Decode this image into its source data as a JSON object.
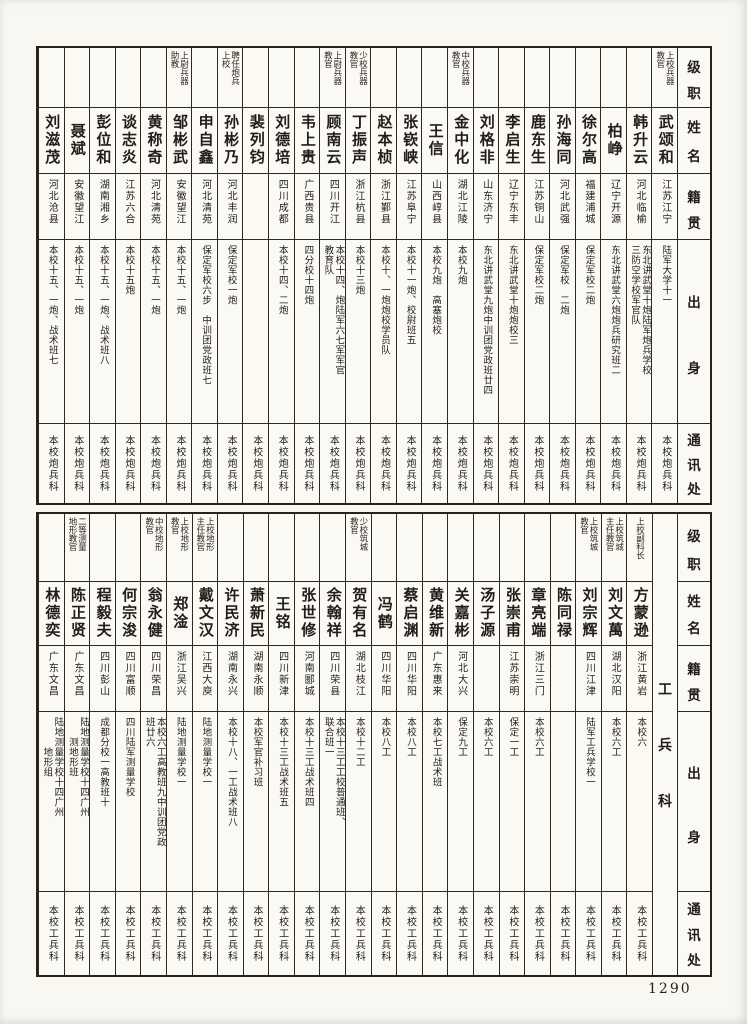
{
  "page": {
    "number": "1290"
  },
  "colors": {
    "paper": "#f8f7f2",
    "ink": "#211e19",
    "line": "#2e2a22"
  },
  "headers": {
    "rank": "级职",
    "name": "姓名",
    "origin": "籍贯",
    "background": "出身",
    "contact": "通讯处"
  },
  "artillery_section": {
    "people": [
      {
        "name": "武颂和",
        "rank": "上校兵器\n教官",
        "origin": "江苏江宁",
        "background": "陆军大学十一",
        "contact": "本校炮兵科"
      },
      {
        "name": "韩升云",
        "rank": "",
        "origin": "河北临榆",
        "background": "东北讲武堂十炮陆军炮兵学校\n三防空学校军官队",
        "contact": "本校炮兵科"
      },
      {
        "name": "柏峥",
        "rank": "",
        "origin": "辽宁开源",
        "background": "东北讲武堂六炮炮兵研究班二",
        "contact": "本校炮兵科"
      },
      {
        "name": "徐尔高",
        "rank": "",
        "origin": "福建浦城",
        "background": "保定军校二炮",
        "contact": "本校炮兵科"
      },
      {
        "name": "孙海同",
        "rank": "",
        "origin": "河北武强",
        "background": "保定军校　二炮",
        "contact": "本校炮兵科"
      },
      {
        "name": "鹿东生",
        "rank": "",
        "origin": "江苏铜山",
        "background": "保定军校二炮",
        "contact": "本校炮兵科"
      },
      {
        "name": "李启生",
        "rank": "",
        "origin": "辽宁东丰",
        "background": "东北讲武堂十炮炮校三",
        "contact": "本校炮兵科"
      },
      {
        "name": "刘格非",
        "rank": "",
        "origin": "山东济宁",
        "background": "东北讲武堂九炮中训团党政班廿四",
        "contact": "本校炮兵科"
      },
      {
        "name": "金中化",
        "rank": "中校兵器\n教官",
        "origin": "湖北江陵",
        "background": "本校九炮",
        "contact": "本校炮兵科"
      },
      {
        "name": "王信",
        "rank": "",
        "origin": "山西崞县",
        "background": "本校九炮　高塞炮校",
        "contact": "本校炮兵科"
      },
      {
        "name": "张嵚峡",
        "rank": "",
        "origin": "江苏阜宁",
        "background": "本校十一炮、校尉班五",
        "contact": "本校炮兵科"
      },
      {
        "name": "赵本桢",
        "rank": "",
        "origin": "浙江鄞县",
        "background": "本校十、一炮炮校学员队",
        "contact": "本校炮兵科"
      },
      {
        "name": "丁振声",
        "rank": "少校兵器\n教官",
        "origin": "浙江杭县",
        "background": "本校十三炮",
        "contact": "本校炮兵科"
      },
      {
        "name": "顾南云",
        "rank": "上尉兵器\n教官",
        "origin": "四川开江",
        "background": "本校十四、炮陆军六七军军官\n教育队",
        "contact": "本校炮兵科"
      },
      {
        "name": "韦上贵",
        "rank": "",
        "origin": "广西贵县",
        "background": "四分校十四炮",
        "contact": "本校炮兵科"
      },
      {
        "name": "刘德培",
        "rank": "",
        "origin": "四川成都",
        "background": "本校十四、二炮",
        "contact": "本校炮兵科"
      },
      {
        "name": "裴列钧",
        "rank": "",
        "origin": "",
        "background": "",
        "contact": "本校炮兵科"
      },
      {
        "name": "孙彬乃",
        "rank": "聘任炮兵\n上校",
        "origin": "河北丰润",
        "background": "保定军校一炮",
        "contact": "本校炮兵科"
      },
      {
        "name": "申自鑫",
        "rank": "",
        "origin": "河北清苑",
        "background": "保定军校六步　中训团党政班七",
        "contact": "本校炮兵科"
      },
      {
        "name": "邹彬武",
        "rank": "上尉兵器\n助教",
        "origin": "安徽望江",
        "background": "本校十五、一炮",
        "contact": "本校炮兵科"
      },
      {
        "name": "黄称奇",
        "rank": "",
        "origin": "河北清苑",
        "background": "本校十五、一炮",
        "contact": "本校炮兵科"
      },
      {
        "name": "谈志炎",
        "rank": "",
        "origin": "江苏六合",
        "background": "本校十五炮",
        "contact": "本校炮兵科"
      },
      {
        "name": "彭位和",
        "rank": "",
        "origin": "湖南湘乡",
        "background": "本校十五、一炮、战术班八",
        "contact": "本校炮兵科"
      },
      {
        "name": "聂斌",
        "rank": "",
        "origin": "安徽望江",
        "background": "本校十五、一炮",
        "contact": "本校炮兵科"
      },
      {
        "name": "刘滋茂",
        "rank": "",
        "origin": "河北沧县",
        "background": "本校十五、一炮、战术班七",
        "contact": "本校炮兵科"
      }
    ]
  },
  "engineer_section": {
    "label": "工兵科",
    "people": [
      {
        "name": "方蒙逊",
        "rank": "上校副科长",
        "origin": "浙江黄岩",
        "background": "本校六",
        "contact": "本校工兵科"
      },
      {
        "name": "刘文萬",
        "rank": "上校筑城\n主任教官",
        "origin": "湖北汉阳",
        "background": "本校六工",
        "contact": "本校工兵科"
      },
      {
        "name": "刘宗辉",
        "rank": "上校筑城\n教官",
        "origin": "四川江津",
        "background": "陆军工兵学校一",
        "contact": "本校工兵科"
      },
      {
        "name": "陈同禄",
        "rank": "",
        "origin": "",
        "background": "",
        "contact": "本校工兵科"
      },
      {
        "name": "章亮端",
        "rank": "",
        "origin": "浙江三门",
        "background": "本校六工",
        "contact": "本校工兵科"
      },
      {
        "name": "张崇甫",
        "rank": "",
        "origin": "江苏崇明",
        "background": "保定一工",
        "contact": "本校工兵科"
      },
      {
        "name": "汤子源",
        "rank": "",
        "origin": "",
        "background": "本校六工",
        "contact": "本校工兵科"
      },
      {
        "name": "关嘉彬",
        "rank": "",
        "origin": "河北大兴",
        "background": "保定九工",
        "contact": "本校工兵科"
      },
      {
        "name": "黄维新",
        "rank": "",
        "origin": "广东惠来",
        "background": "本校七工战术班",
        "contact": "本校工兵科"
      },
      {
        "name": "蔡启渊",
        "rank": "",
        "origin": "四川华阳",
        "background": "本校八工",
        "contact": "本校工兵科"
      },
      {
        "name": "冯鹤",
        "rank": "",
        "origin": "四川华阳",
        "background": "本校八工",
        "contact": "本校工兵科"
      },
      {
        "name": "贺有名",
        "rank": "少校筑城\n教官",
        "origin": "湖北枝江",
        "background": "本校十二工",
        "contact": "本校工兵科"
      },
      {
        "name": "余翰祥",
        "rank": "",
        "origin": "四川荣县",
        "background": "本校十三工工校普通班、\n联合班一",
        "contact": "本校工兵科"
      },
      {
        "name": "张世修",
        "rank": "",
        "origin": "河南郾城",
        "background": "本校十三工战术班四",
        "contact": "本校工兵科"
      },
      {
        "name": "王铭",
        "rank": "",
        "origin": "四川新津",
        "background": "本校十三工战术班五",
        "contact": "本校工兵科"
      },
      {
        "name": "萧新民",
        "rank": "",
        "origin": "湖南永顺",
        "background": "本校军官补习班",
        "contact": "本校工兵科"
      },
      {
        "name": "许民济",
        "rank": "",
        "origin": "湖南永兴",
        "background": "本校十八、一工战术班八",
        "contact": "本校工兵科"
      },
      {
        "name": "戴文汉",
        "rank": "上校地形\n主任教官",
        "origin": "江西大庾",
        "background": "陆地测量学校一",
        "contact": "本校工兵科"
      },
      {
        "name": "郑淦",
        "rank": "上校地形\n教官",
        "origin": "浙江吴兴",
        "background": "陆地测量学校一",
        "contact": "本校工兵科"
      },
      {
        "name": "翁永健",
        "rank": "中校地形\n教官",
        "origin": "四川荣昌",
        "background": "本校六工高教班九中训团党政\n班廿六",
        "contact": "本校工兵科"
      },
      {
        "name": "何宗浚",
        "rank": "",
        "origin": "四川富顺",
        "background": "四川陆军测量学校",
        "contact": "本校工兵科"
      },
      {
        "name": "程毅夫",
        "rank": "",
        "origin": "四川彭山",
        "background": "成都分校一高教班十",
        "contact": "本校工兵科"
      },
      {
        "name": "陈正贤",
        "rank": "二等测量\n地形教官",
        "origin": "广东文昌",
        "background": "陆地测量学校十四广州\n　　测地形班",
        "contact": "本校工兵科"
      },
      {
        "name": "林德奕",
        "rank": "",
        "origin": "广东文昌",
        "background": "陆地测量学校十四广州\n　　　地形组",
        "contact": "本校工兵科"
      }
    ]
  }
}
